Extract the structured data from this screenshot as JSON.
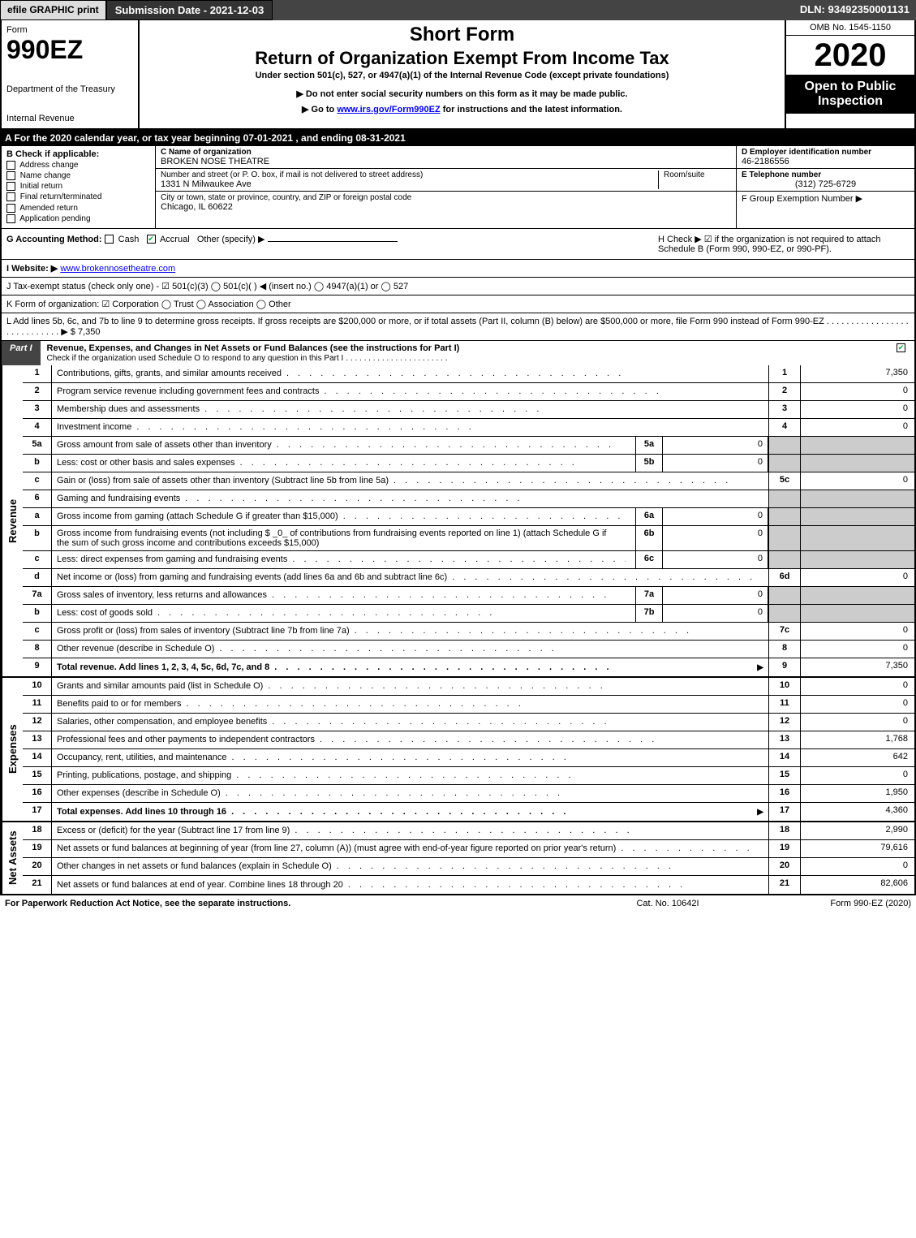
{
  "topbar": {
    "efile": "efile GRAPHIC print",
    "submission": "Submission Date - 2021-12-03",
    "dln": "DLN: 93492350001131"
  },
  "header": {
    "form_label": "Form",
    "form_number": "990EZ",
    "dept1": "Department of the Treasury",
    "dept2": "Internal Revenue",
    "short_form": "Short Form",
    "title": "Return of Organization Exempt From Income Tax",
    "subtitle": "Under section 501(c), 527, or 4947(a)(1) of the Internal Revenue Code (except private foundations)",
    "notice1": "▶ Do not enter social security numbers on this form as it may be made public.",
    "notice2_pre": "▶ Go to ",
    "notice2_link": "www.irs.gov/Form990EZ",
    "notice2_post": " for instructions and the latest information.",
    "omb": "OMB No. 1545-1150",
    "year": "2020",
    "open": "Open to Public Inspection"
  },
  "row_a": "A For the 2020 calendar year, or tax year beginning 07-01-2021 , and ending 08-31-2021",
  "section_b": {
    "hdr": "B  Check if applicable:",
    "items": [
      "Address change",
      "Name change",
      "Initial return",
      "Final return/terminated",
      "Amended return",
      "Application pending"
    ]
  },
  "section_c": {
    "name_lbl": "C Name of organization",
    "name_val": "BROKEN NOSE THEATRE",
    "addr_lbl": "Number and street (or P. O. box, if mail is not delivered to street address)",
    "addr_val": "1331 N Milwaukee Ave",
    "room_lbl": "Room/suite",
    "city_lbl": "City or town, state or province, country, and ZIP or foreign postal code",
    "city_val": "Chicago, IL  60622"
  },
  "section_d": {
    "d_lbl": "D Employer identification number",
    "d_val": "46-2186556",
    "e_lbl": "E Telephone number",
    "e_val": "(312) 725-6729",
    "f_lbl": "F Group Exemption Number  ▶"
  },
  "row_g": {
    "g_pre": "G Accounting Method:  ",
    "g_cash": "Cash",
    "g_accrual": "Accrual",
    "g_other": "Other (specify) ▶",
    "h_text": "H  Check ▶  ☑  if the organization is not required to attach Schedule B (Form 990, 990-EZ, or 990-PF)."
  },
  "row_i": {
    "lbl": "I Website: ▶",
    "val": "www.brokennosetheatre.com"
  },
  "row_j": "J Tax-exempt status (check only one) - ☑ 501(c)(3)  ◯ 501(c)(  ) ◀ (insert no.)  ◯ 4947(a)(1) or  ◯ 527",
  "row_k": "K Form of organization:  ☑ Corporation  ◯ Trust  ◯ Association  ◯ Other",
  "row_l": {
    "text": "L Add lines 5b, 6c, and 7b to line 9 to determine gross receipts. If gross receipts are $200,000 or more, or if total assets (Part II, column (B) below) are $500,000 or more, file Form 990 instead of Form 990-EZ",
    "amount": "▶ $ 7,350"
  },
  "part1": {
    "part_lbl": "Part I",
    "title": "Revenue, Expenses, and Changes in Net Assets or Fund Balances (see the instructions for Part I)",
    "check_line": "Check if the organization used Schedule O to respond to any question in this Part I"
  },
  "side_labels": {
    "revenue": "Revenue",
    "expenses": "Expenses",
    "netassets": "Net Assets"
  },
  "lines": {
    "revenue": [
      {
        "no": "1",
        "desc": "Contributions, gifts, grants, and similar amounts received",
        "main_no": "1",
        "main_val": "7,350"
      },
      {
        "no": "2",
        "desc": "Program service revenue including government fees and contracts",
        "main_no": "2",
        "main_val": "0"
      },
      {
        "no": "3",
        "desc": "Membership dues and assessments",
        "main_no": "3",
        "main_val": "0"
      },
      {
        "no": "4",
        "desc": "Investment income",
        "main_no": "4",
        "main_val": "0"
      },
      {
        "no": "5a",
        "desc": "Gross amount from sale of assets other than inventory",
        "sub_no": "5a",
        "sub_val": "0",
        "shaded": true
      },
      {
        "no": "b",
        "desc": "Less: cost or other basis and sales expenses",
        "sub_no": "5b",
        "sub_val": "0",
        "shaded": true
      },
      {
        "no": "c",
        "desc": "Gain or (loss) from sale of assets other than inventory (Subtract line 5b from line 5a)",
        "main_no": "5c",
        "main_val": "0"
      },
      {
        "no": "6",
        "desc": "Gaming and fundraising events",
        "shaded": true,
        "no_cols": true
      },
      {
        "no": "a",
        "desc": "Gross income from gaming (attach Schedule G if greater than $15,000)",
        "sub_no": "6a",
        "sub_val": "0",
        "shaded": true
      },
      {
        "no": "b",
        "desc": "Gross income from fundraising events (not including $ _0_ of contributions from fundraising events reported on line 1) (attach Schedule G if the sum of such gross income and contributions exceeds $15,000)",
        "sub_no": "6b",
        "sub_val": "0",
        "shaded": true
      },
      {
        "no": "c",
        "desc": "Less: direct expenses from gaming and fundraising events",
        "sub_no": "6c",
        "sub_val": "0",
        "shaded": true
      },
      {
        "no": "d",
        "desc": "Net income or (loss) from gaming and fundraising events (add lines 6a and 6b and subtract line 6c)",
        "main_no": "6d",
        "main_val": "0"
      },
      {
        "no": "7a",
        "desc": "Gross sales of inventory, less returns and allowances",
        "sub_no": "7a",
        "sub_val": "0",
        "shaded": true
      },
      {
        "no": "b",
        "desc": "Less: cost of goods sold",
        "sub_no": "7b",
        "sub_val": "0",
        "shaded": true
      },
      {
        "no": "c",
        "desc": "Gross profit or (loss) from sales of inventory (Subtract line 7b from line 7a)",
        "main_no": "7c",
        "main_val": "0"
      },
      {
        "no": "8",
        "desc": "Other revenue (describe in Schedule O)",
        "main_no": "8",
        "main_val": "0"
      },
      {
        "no": "9",
        "desc": "Total revenue. Add lines 1, 2, 3, 4, 5c, 6d, 7c, and 8",
        "main_no": "9",
        "main_val": "7,350",
        "total": true,
        "arrow": true
      }
    ],
    "expenses": [
      {
        "no": "10",
        "desc": "Grants and similar amounts paid (list in Schedule O)",
        "main_no": "10",
        "main_val": "0"
      },
      {
        "no": "11",
        "desc": "Benefits paid to or for members",
        "main_no": "11",
        "main_val": "0"
      },
      {
        "no": "12",
        "desc": "Salaries, other compensation, and employee benefits",
        "main_no": "12",
        "main_val": "0"
      },
      {
        "no": "13",
        "desc": "Professional fees and other payments to independent contractors",
        "main_no": "13",
        "main_val": "1,768"
      },
      {
        "no": "14",
        "desc": "Occupancy, rent, utilities, and maintenance",
        "main_no": "14",
        "main_val": "642"
      },
      {
        "no": "15",
        "desc": "Printing, publications, postage, and shipping",
        "main_no": "15",
        "main_val": "0"
      },
      {
        "no": "16",
        "desc": "Other expenses (describe in Schedule O)",
        "main_no": "16",
        "main_val": "1,950"
      },
      {
        "no": "17",
        "desc": "Total expenses. Add lines 10 through 16",
        "main_no": "17",
        "main_val": "4,360",
        "total": true,
        "arrow": true
      }
    ],
    "netassets": [
      {
        "no": "18",
        "desc": "Excess or (deficit) for the year (Subtract line 17 from line 9)",
        "main_no": "18",
        "main_val": "2,990"
      },
      {
        "no": "19",
        "desc": "Net assets or fund balances at beginning of year (from line 27, column (A)) (must agree with end-of-year figure reported on prior year's return)",
        "main_no": "19",
        "main_val": "79,616"
      },
      {
        "no": "20",
        "desc": "Other changes in net assets or fund balances (explain in Schedule O)",
        "main_no": "20",
        "main_val": "0"
      },
      {
        "no": "21",
        "desc": "Net assets or fund balances at end of year. Combine lines 18 through 20",
        "main_no": "21",
        "main_val": "82,606"
      }
    ]
  },
  "footer": {
    "left": "For Paperwork Reduction Act Notice, see the separate instructions.",
    "mid": "Cat. No. 10642I",
    "right": "Form 990-EZ (2020)"
  },
  "colors": {
    "black": "#000000",
    "darkgray": "#444444",
    "lightgray": "#dddddd",
    "shaded": "#cccccc",
    "link": "#0000ee",
    "check": "#00aa33"
  }
}
